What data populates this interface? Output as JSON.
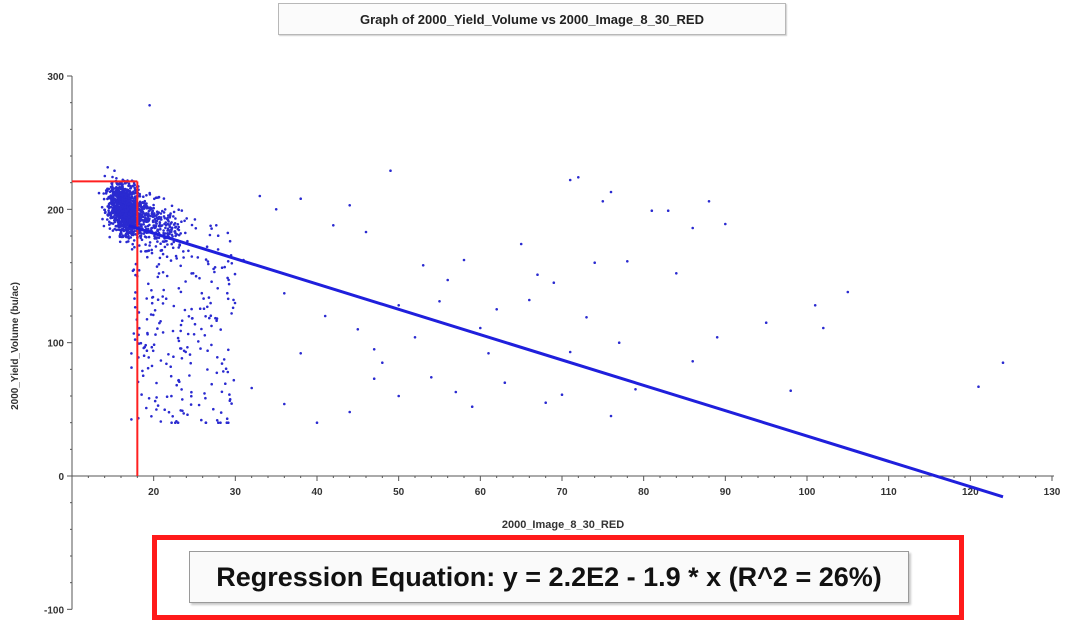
{
  "chart_data": {
    "type": "scatter",
    "title": "Graph of 2000_Yield_Volume vs 2000_Image_8_30_RED",
    "xlabel": "2000_Image_8_30_RED",
    "ylabel": "2000_Yield_Volume (bu/ac)",
    "xlim": [
      10,
      130
    ],
    "ylim": [
      -100,
      300
    ],
    "x_ticks": [
      20,
      30,
      40,
      50,
      60,
      70,
      80,
      90,
      100,
      110,
      120,
      130
    ],
    "y_ticks": [
      -100,
      0,
      100,
      200,
      300
    ],
    "grid": false,
    "series": [
      {
        "points_cluster_center": [
          16.5,
          200
        ],
        "points": [
          [
            49,
            229
          ],
          [
            71,
            222
          ],
          [
            72,
            224
          ],
          [
            76,
            213
          ],
          [
            75,
            206
          ],
          [
            88,
            206
          ],
          [
            81,
            199
          ],
          [
            83,
            199
          ],
          [
            90,
            189
          ],
          [
            86,
            186
          ],
          [
            101,
            128
          ],
          [
            105,
            138
          ],
          [
            102,
            111
          ],
          [
            95,
            115
          ],
          [
            89,
            104
          ],
          [
            77,
            100
          ],
          [
            86,
            86
          ],
          [
            79,
            65
          ],
          [
            98,
            64
          ],
          [
            121,
            67
          ],
          [
            124,
            85
          ],
          [
            74,
            160
          ],
          [
            67,
            151
          ],
          [
            65,
            174
          ],
          [
            58,
            162
          ],
          [
            69,
            145
          ],
          [
            78,
            161
          ],
          [
            84,
            152
          ],
          [
            62,
            125
          ],
          [
            66,
            132
          ],
          [
            71,
            93
          ],
          [
            73,
            119
          ],
          [
            60,
            111
          ],
          [
            55,
            131
          ],
          [
            50,
            128
          ],
          [
            52,
            104
          ],
          [
            44,
            203
          ],
          [
            38,
            208
          ],
          [
            35,
            200
          ],
          [
            42,
            188
          ],
          [
            33,
            210
          ],
          [
            46,
            183
          ],
          [
            53,
            158
          ],
          [
            56,
            147
          ],
          [
            61,
            92
          ],
          [
            57,
            63
          ],
          [
            68,
            55
          ],
          [
            70,
            61
          ],
          [
            76,
            45
          ],
          [
            63,
            70
          ],
          [
            47,
            73
          ],
          [
            44,
            48
          ],
          [
            36,
            54
          ],
          [
            40,
            40
          ],
          [
            32,
            66
          ],
          [
            29,
            43
          ],
          [
            38,
            92
          ],
          [
            41,
            120
          ],
          [
            36,
            137
          ],
          [
            31,
            162
          ],
          [
            45,
            110
          ],
          [
            48,
            85
          ],
          [
            54,
            74
          ],
          [
            59,
            52
          ],
          [
            50,
            60
          ],
          [
            47,
            95
          ]
        ]
      }
    ],
    "regression": {
      "intercept": 220,
      "slope": -1.9,
      "x_range": [
        17,
        124
      ]
    },
    "reference_lines": {
      "x": 18,
      "y": 221,
      "color": "#ff2020"
    },
    "colors": {
      "points": "#2a2ad0",
      "regression": "#1f1fdc",
      "reference": "#ff2020",
      "callout_border": "#ff1a1a"
    },
    "annotation": "Regression Equation: y = 2.2E2 - 1.9 * x (R^2 = 26%)"
  }
}
